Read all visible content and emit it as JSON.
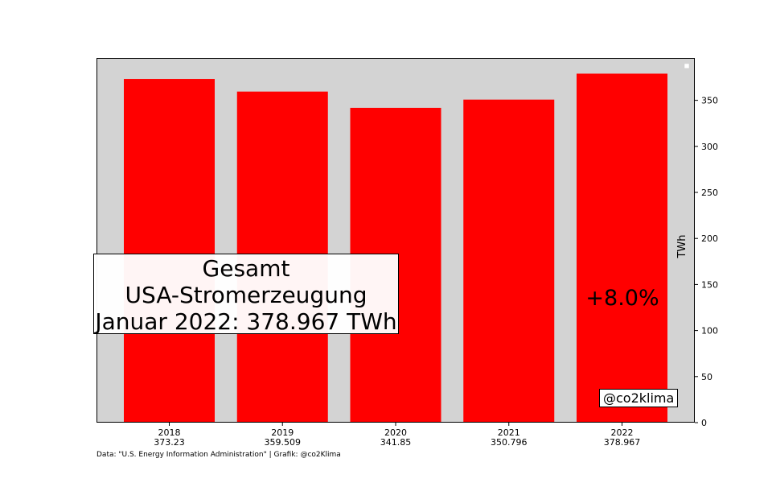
{
  "chart_data": {
    "type": "bar",
    "categories": [
      "2018",
      "2019",
      "2020",
      "2021",
      "2022"
    ],
    "value_labels": [
      "373.23",
      "359.509",
      "341.85",
      "350.796",
      "378.967"
    ],
    "values": [
      373.23,
      359.509,
      341.85,
      350.796,
      378.967
    ],
    "ylabel": "TWh",
    "ylim": [
      0,
      396
    ],
    "yticks": [
      0,
      50,
      100,
      150,
      200,
      250,
      300,
      350
    ],
    "y_axis_side": "right",
    "grid": false,
    "legend": "top-right, empty",
    "colors": {
      "bar": "#ff0000",
      "plot_background": "#d3d3d3"
    }
  },
  "annotation": {
    "lines": [
      "Gesamt",
      "USA-Stromerzeugung",
      "Januar 2022: 378.967 TWh"
    ],
    "change": "+8.0%",
    "handle": "@co2klima"
  },
  "source": "Data: \"U.S. Energy Information Administration\" | Grafik: @co2Klima"
}
